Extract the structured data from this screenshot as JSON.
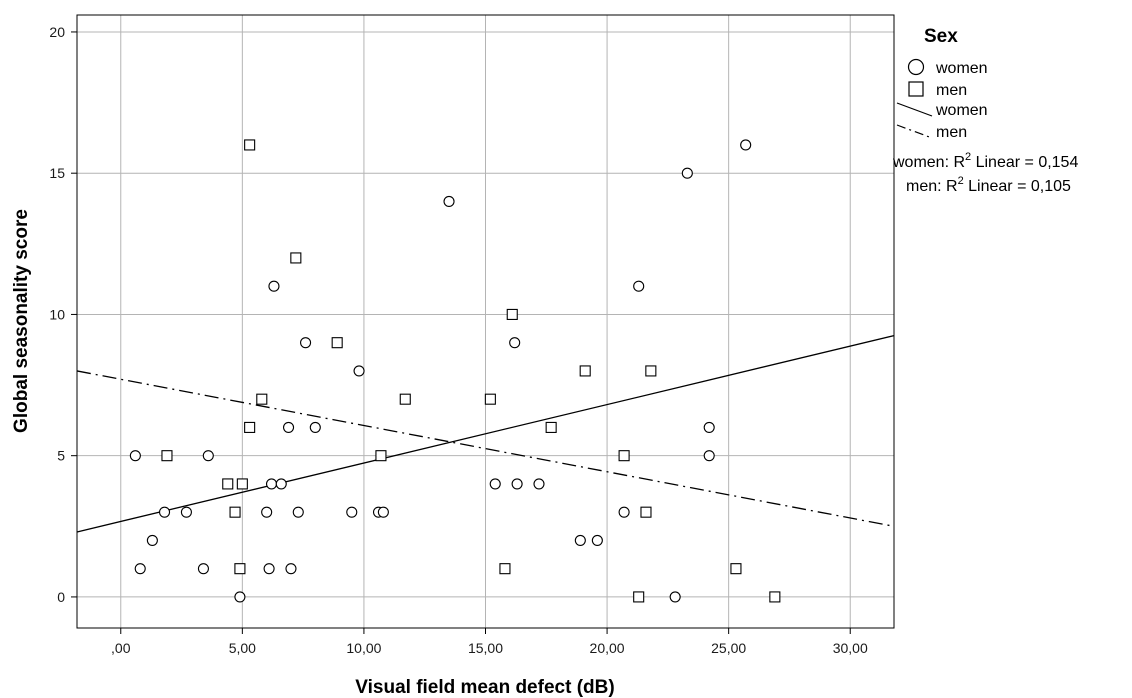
{
  "chart_data": {
    "type": "scatter",
    "xlabel": "Visual field mean defect (dB)",
    "ylabel": "Global seasonality score",
    "xlim": [
      -1.8,
      31.8
    ],
    "ylim": [
      -1.1,
      20.6
    ],
    "xticks": [
      0,
      5,
      10,
      15,
      20,
      25,
      30
    ],
    "xtick_labels": [
      ",00",
      "5,00",
      "10,00",
      "15,00",
      "20,00",
      "25,00",
      "30,00"
    ],
    "yticks": [
      0,
      5,
      10,
      15,
      20
    ],
    "ytick_labels": [
      "0",
      "5",
      "10",
      "15",
      "20"
    ],
    "grid": true,
    "legend": {
      "title": "Sex",
      "position": "right",
      "items": [
        {
          "label": "women",
          "marker": "circle"
        },
        {
          "label": "men",
          "marker": "square"
        },
        {
          "label": "women",
          "line": "solid"
        },
        {
          "label": "men",
          "line": "dashdot"
        }
      ],
      "r2_women": {
        "prefix": "women: R",
        "sup": "2",
        "suffix": " Linear = 0,154"
      },
      "r2_men": {
        "prefix": "men: R",
        "sup": "2",
        "suffix": " Linear = 0,105"
      }
    },
    "series": [
      {
        "name": "women",
        "marker": "circle",
        "points": [
          [
            0.6,
            5
          ],
          [
            0.8,
            1
          ],
          [
            1.3,
            2
          ],
          [
            1.8,
            3
          ],
          [
            2.7,
            3
          ],
          [
            3.4,
            1
          ],
          [
            3.6,
            5
          ],
          [
            4.9,
            0
          ],
          [
            6.0,
            3
          ],
          [
            6.1,
            1
          ],
          [
            6.2,
            4
          ],
          [
            6.3,
            11
          ],
          [
            6.6,
            4
          ],
          [
            6.9,
            6
          ],
          [
            7.0,
            1
          ],
          [
            7.3,
            3
          ],
          [
            7.6,
            9
          ],
          [
            8.0,
            6
          ],
          [
            9.5,
            3
          ],
          [
            9.8,
            8
          ],
          [
            10.6,
            3
          ],
          [
            10.8,
            3
          ],
          [
            13.5,
            14
          ],
          [
            15.4,
            4
          ],
          [
            16.2,
            9
          ],
          [
            16.3,
            4
          ],
          [
            17.2,
            4
          ],
          [
            18.9,
            2
          ],
          [
            19.6,
            2
          ],
          [
            20.7,
            3
          ],
          [
            21.3,
            11
          ],
          [
            22.8,
            0
          ],
          [
            23.3,
            15
          ],
          [
            24.2,
            6
          ],
          [
            24.2,
            5
          ],
          [
            25.7,
            16
          ]
        ]
      },
      {
        "name": "men",
        "marker": "square",
        "points": [
          [
            1.9,
            5
          ],
          [
            4.4,
            4
          ],
          [
            4.7,
            3
          ],
          [
            4.9,
            1
          ],
          [
            5.0,
            4
          ],
          [
            5.3,
            6
          ],
          [
            5.3,
            16
          ],
          [
            5.8,
            7
          ],
          [
            7.2,
            12
          ],
          [
            8.9,
            9
          ],
          [
            10.7,
            5
          ],
          [
            11.7,
            7
          ],
          [
            15.2,
            7
          ],
          [
            15.8,
            1
          ],
          [
            16.1,
            10
          ],
          [
            17.7,
            6
          ],
          [
            19.1,
            8
          ],
          [
            20.7,
            5
          ],
          [
            21.3,
            0
          ],
          [
            21.6,
            3
          ],
          [
            21.8,
            8
          ],
          [
            25.3,
            1
          ],
          [
            26.9,
            0
          ]
        ]
      }
    ],
    "fit_lines": [
      {
        "name": "women",
        "style": "solid",
        "x": [
          -1.8,
          31.8
        ],
        "y": [
          2.3,
          9.25
        ]
      },
      {
        "name": "men",
        "style": "dashdot",
        "x": [
          -1.8,
          31.8
        ],
        "y": [
          8.0,
          2.5
        ]
      }
    ]
  }
}
